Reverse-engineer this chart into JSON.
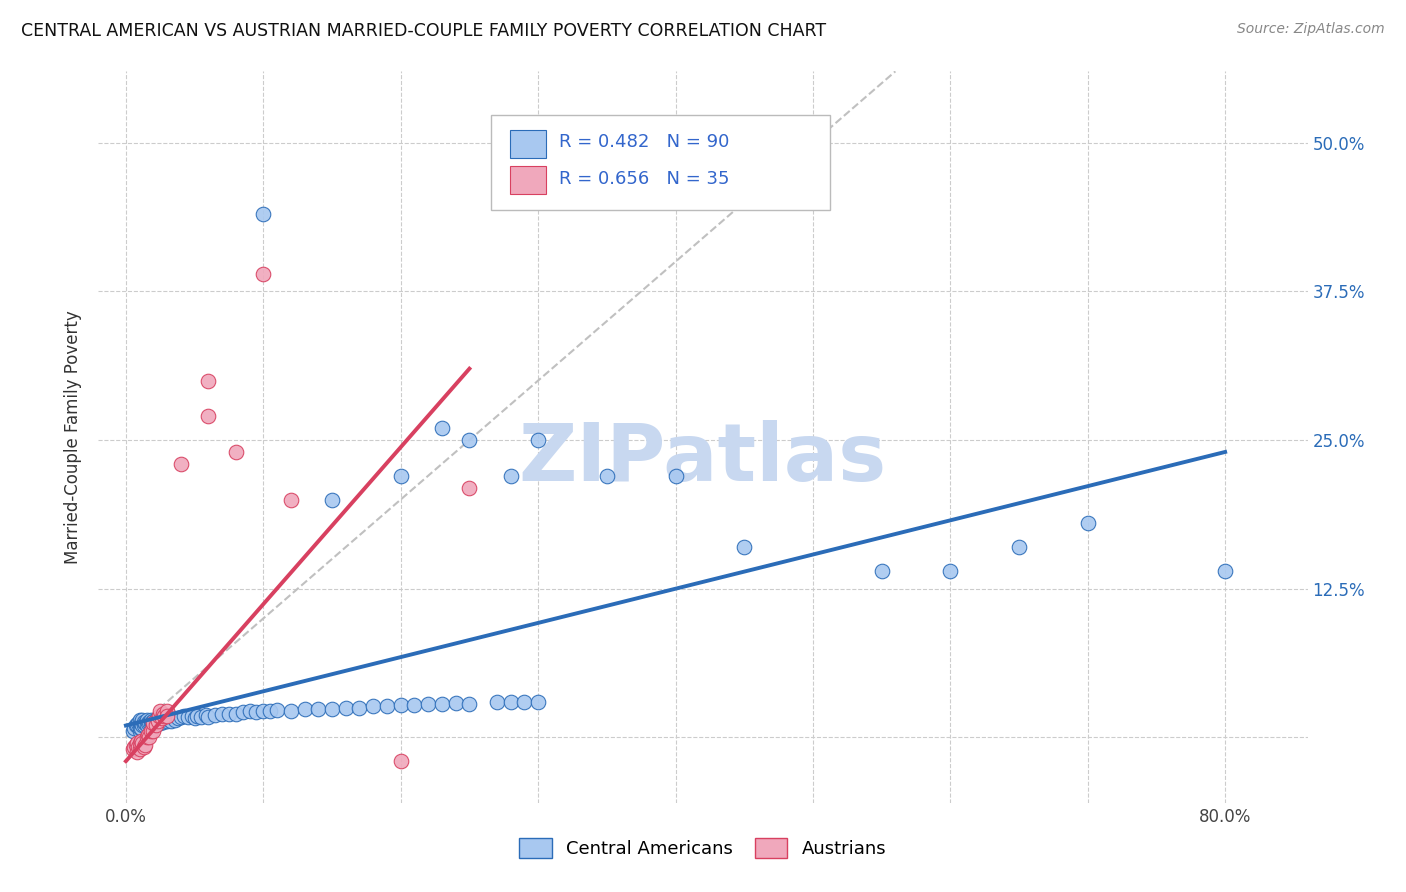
{
  "title": "CENTRAL AMERICAN VS AUSTRIAN MARRIED-COUPLE FAMILY POVERTY CORRELATION CHART",
  "source": "Source: ZipAtlas.com",
  "ylabel": "Married-Couple Family Poverty",
  "x_ticks": [
    0.0,
    0.1,
    0.2,
    0.3,
    0.4,
    0.5,
    0.6,
    0.7,
    0.8
  ],
  "x_tick_labels": [
    "0.0%",
    "",
    "",
    "",
    "",
    "",
    "",
    "",
    "80.0%"
  ],
  "y_ticks": [
    0.0,
    0.125,
    0.25,
    0.375,
    0.5
  ],
  "y_tick_labels": [
    "",
    "12.5%",
    "25.0%",
    "37.5%",
    "50.0%"
  ],
  "xlim": [
    -0.02,
    0.86
  ],
  "ylim": [
    -0.055,
    0.56
  ],
  "blue_color": "#A8C8F0",
  "pink_color": "#F0A8BC",
  "blue_line_color": "#2B6CB8",
  "pink_line_color": "#D84060",
  "diagonal_color": "#C0C0C0",
  "watermark_color": "#C8D8F0",
  "legend_color": "#3366CC",
  "blue_scatter": [
    [
      0.005,
      0.005
    ],
    [
      0.006,
      0.008
    ],
    [
      0.007,
      0.01
    ],
    [
      0.008,
      0.01
    ],
    [
      0.009,
      0.012
    ],
    [
      0.01,
      0.005
    ],
    [
      0.01,
      0.008
    ],
    [
      0.01,
      0.012
    ],
    [
      0.01,
      0.015
    ],
    [
      0.011,
      0.008
    ],
    [
      0.011,
      0.012
    ],
    [
      0.012,
      0.01
    ],
    [
      0.012,
      0.015
    ],
    [
      0.013,
      0.01
    ],
    [
      0.013,
      0.013
    ],
    [
      0.014,
      0.012
    ],
    [
      0.015,
      0.01
    ],
    [
      0.015,
      0.015
    ],
    [
      0.016,
      0.012
    ],
    [
      0.017,
      0.013
    ],
    [
      0.018,
      0.012
    ],
    [
      0.018,
      0.015
    ],
    [
      0.019,
      0.013
    ],
    [
      0.02,
      0.01
    ],
    [
      0.02,
      0.014
    ],
    [
      0.021,
      0.012
    ],
    [
      0.022,
      0.013
    ],
    [
      0.022,
      0.015
    ],
    [
      0.023,
      0.014
    ],
    [
      0.024,
      0.013
    ],
    [
      0.025,
      0.012
    ],
    [
      0.025,
      0.015
    ],
    [
      0.026,
      0.014
    ],
    [
      0.027,
      0.013
    ],
    [
      0.028,
      0.015
    ],
    [
      0.03,
      0.014
    ],
    [
      0.03,
      0.016
    ],
    [
      0.032,
      0.015
    ],
    [
      0.033,
      0.014
    ],
    [
      0.035,
      0.016
    ],
    [
      0.036,
      0.015
    ],
    [
      0.038,
      0.016
    ],
    [
      0.04,
      0.017
    ],
    [
      0.042,
      0.018
    ],
    [
      0.045,
      0.017
    ],
    [
      0.048,
      0.018
    ],
    [
      0.05,
      0.016
    ],
    [
      0.052,
      0.018
    ],
    [
      0.055,
      0.017
    ],
    [
      0.058,
      0.019
    ],
    [
      0.06,
      0.017
    ],
    [
      0.065,
      0.019
    ],
    [
      0.07,
      0.02
    ],
    [
      0.075,
      0.02
    ],
    [
      0.08,
      0.02
    ],
    [
      0.085,
      0.021
    ],
    [
      0.09,
      0.022
    ],
    [
      0.095,
      0.021
    ],
    [
      0.1,
      0.022
    ],
    [
      0.105,
      0.022
    ],
    [
      0.11,
      0.023
    ],
    [
      0.12,
      0.022
    ],
    [
      0.13,
      0.024
    ],
    [
      0.14,
      0.024
    ],
    [
      0.15,
      0.024
    ],
    [
      0.16,
      0.025
    ],
    [
      0.17,
      0.025
    ],
    [
      0.18,
      0.026
    ],
    [
      0.19,
      0.026
    ],
    [
      0.2,
      0.027
    ],
    [
      0.21,
      0.027
    ],
    [
      0.22,
      0.028
    ],
    [
      0.23,
      0.028
    ],
    [
      0.24,
      0.029
    ],
    [
      0.25,
      0.028
    ],
    [
      0.27,
      0.03
    ],
    [
      0.28,
      0.03
    ],
    [
      0.29,
      0.03
    ],
    [
      0.3,
      0.03
    ],
    [
      0.1,
      0.44
    ],
    [
      0.15,
      0.2
    ],
    [
      0.2,
      0.22
    ],
    [
      0.23,
      0.26
    ],
    [
      0.25,
      0.25
    ],
    [
      0.28,
      0.22
    ],
    [
      0.3,
      0.25
    ],
    [
      0.35,
      0.22
    ],
    [
      0.4,
      0.22
    ],
    [
      0.45,
      0.16
    ],
    [
      0.55,
      0.14
    ],
    [
      0.6,
      0.14
    ],
    [
      0.65,
      0.16
    ],
    [
      0.7,
      0.18
    ],
    [
      0.8,
      0.14
    ]
  ],
  "pink_scatter": [
    [
      0.005,
      -0.01
    ],
    [
      0.006,
      -0.008
    ],
    [
      0.007,
      -0.006
    ],
    [
      0.008,
      -0.005
    ],
    [
      0.008,
      -0.012
    ],
    [
      0.009,
      -0.008
    ],
    [
      0.01,
      -0.01
    ],
    [
      0.01,
      -0.005
    ],
    [
      0.011,
      -0.003
    ],
    [
      0.012,
      -0.005
    ],
    [
      0.013,
      -0.008
    ],
    [
      0.014,
      -0.006
    ],
    [
      0.015,
      0.0
    ],
    [
      0.016,
      0.002
    ],
    [
      0.017,
      0.0
    ],
    [
      0.018,
      0.005
    ],
    [
      0.02,
      0.005
    ],
    [
      0.02,
      0.012
    ],
    [
      0.022,
      0.01
    ],
    [
      0.023,
      0.014
    ],
    [
      0.024,
      0.018
    ],
    [
      0.025,
      0.022
    ],
    [
      0.026,
      0.016
    ],
    [
      0.027,
      0.02
    ],
    [
      0.028,
      0.018
    ],
    [
      0.03,
      0.022
    ],
    [
      0.03,
      0.018
    ],
    [
      0.04,
      0.23
    ],
    [
      0.06,
      0.27
    ],
    [
      0.06,
      0.3
    ],
    [
      0.08,
      0.24
    ],
    [
      0.1,
      0.39
    ],
    [
      0.12,
      0.2
    ],
    [
      0.2,
      -0.02
    ],
    [
      0.25,
      0.21
    ]
  ],
  "blue_trendline": [
    [
      0.0,
      0.01
    ],
    [
      0.8,
      0.24
    ]
  ],
  "pink_trendline": [
    [
      0.0,
      -0.02
    ],
    [
      0.25,
      0.31
    ]
  ],
  "diagonal_line": [
    [
      0.0,
      0.0
    ],
    [
      0.56,
      0.56
    ]
  ]
}
